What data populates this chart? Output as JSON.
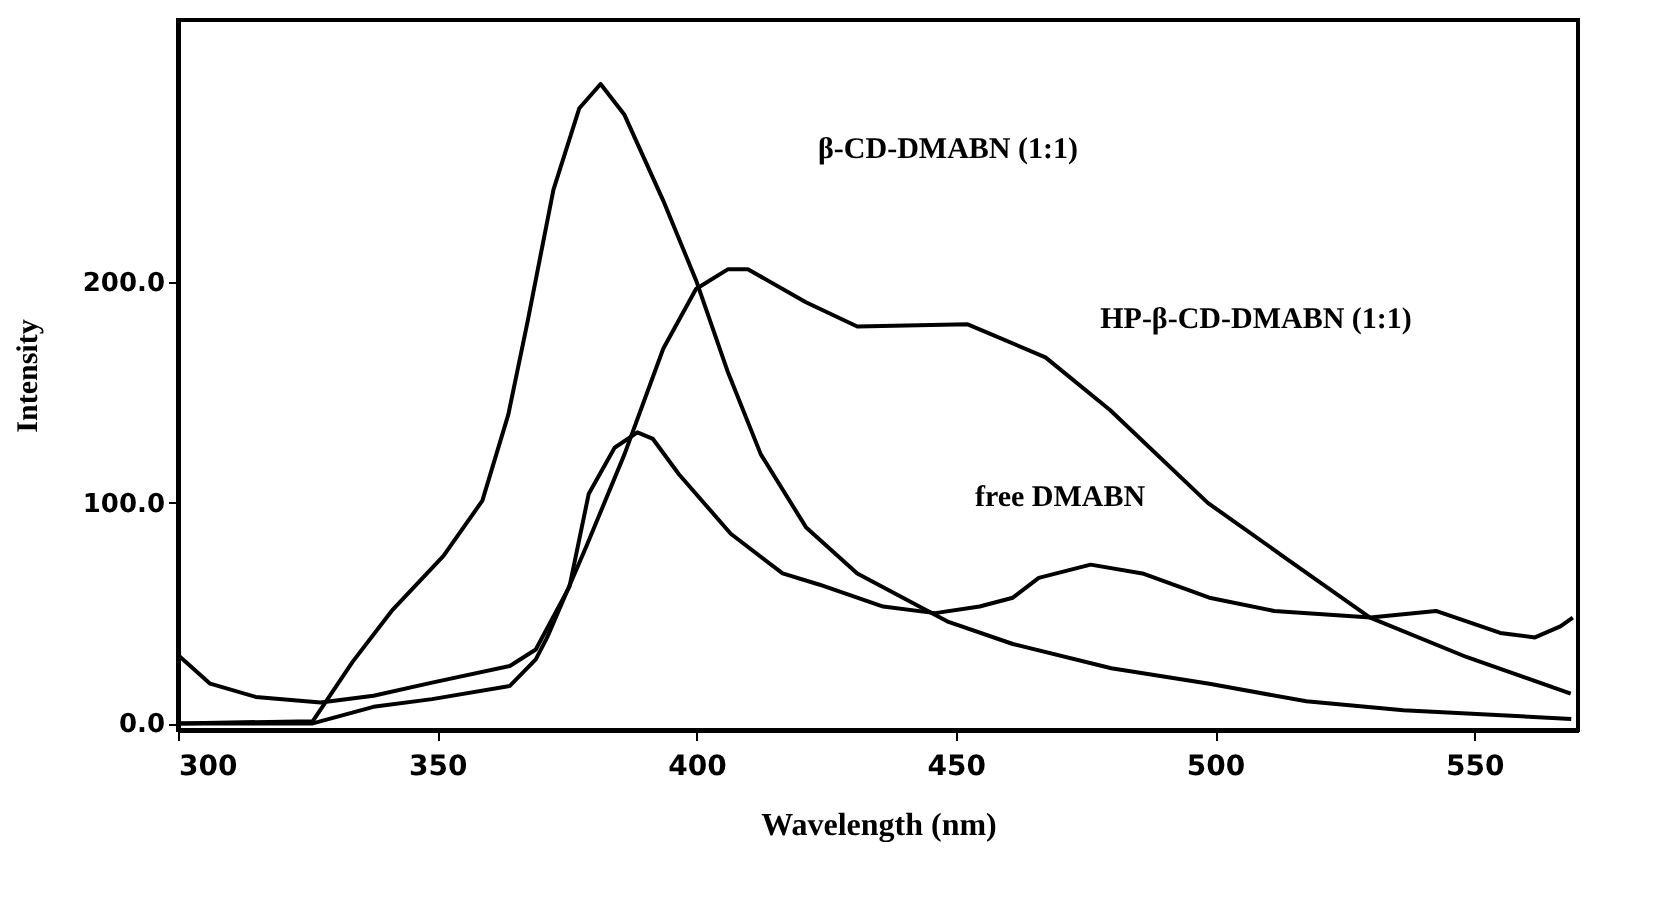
{
  "chart_data": {
    "type": "line",
    "xlabel": "Wavelength (nm)",
    "ylabel": "Intensity",
    "xlim": [
      300,
      570
    ],
    "ylim": [
      -3,
      319
    ],
    "xticks": [
      300,
      350,
      400,
      450,
      500,
      550
    ],
    "yticks": [
      {
        "value": 0,
        "label": "0.0"
      },
      {
        "value": 100,
        "label": "100.0"
      },
      {
        "value": 200,
        "label": "200.0"
      }
    ],
    "grid": false,
    "marker": "none",
    "line_style": "solid",
    "series": [
      {
        "color": "#000000",
        "x": [
          300,
          326,
          333.7,
          341.2,
          351.2,
          358.7,
          363.7,
          367.4,
          372.4,
          377.4,
          381.5,
          386.1,
          393.6,
          399.9,
          406.1,
          412.4,
          421.1,
          431,
          448.6,
          461,
          480,
          498.9,
          517.6,
          536.3,
          568.7
        ],
        "values": [
          0,
          1,
          28,
          51,
          76,
          101,
          140,
          182,
          242,
          279,
          290,
          276,
          237,
          201,
          159,
          122,
          89,
          68,
          46,
          36,
          25,
          18,
          10,
          6,
          2
        ]
      },
      {
        "color": "#000000",
        "x": [
          300,
          326,
          337.7,
          349,
          364,
          369,
          371.2,
          378.7,
          386.1,
          393.6,
          399.9,
          406.1,
          409.9,
          421.1,
          431,
          452.3,
          467.3,
          479.8,
          498.6,
          513.6,
          529.9,
          548.6,
          568.6
        ],
        "values": [
          0,
          0,
          7.5,
          11,
          17,
          29,
          39,
          80,
          122,
          170,
          197,
          206,
          206,
          191,
          180,
          181,
          166,
          142,
          100,
          75,
          48,
          30,
          13.5
        ]
      },
      {
        "color": "#000000",
        "x": [
          300,
          306.2,
          315,
          327.5,
          337.7,
          349,
          364,
          369,
          375.5,
          379.2,
          384.2,
          388.6,
          391.6,
          396.6,
          406.6,
          416.6,
          423.6,
          436,
          446,
          454.6,
          461,
          466,
          476,
          486,
          498.9,
          511.4,
          530,
          542.6,
          555,
          561.7,
          566.6,
          569
        ],
        "values": [
          31,
          18,
          12,
          9.5,
          12.5,
          18.5,
          26,
          33.5,
          62,
          104,
          125,
          132,
          129,
          113,
          86,
          68,
          63,
          53,
          50,
          53,
          57,
          66,
          72,
          68,
          57,
          51,
          48,
          51,
          41,
          39,
          44,
          48
        ]
      }
    ],
    "annotations": [
      "β-CD-DMABN (1:1)",
      "HP-β-CD-DMABN (1:1)",
      "free DMABN"
    ]
  }
}
